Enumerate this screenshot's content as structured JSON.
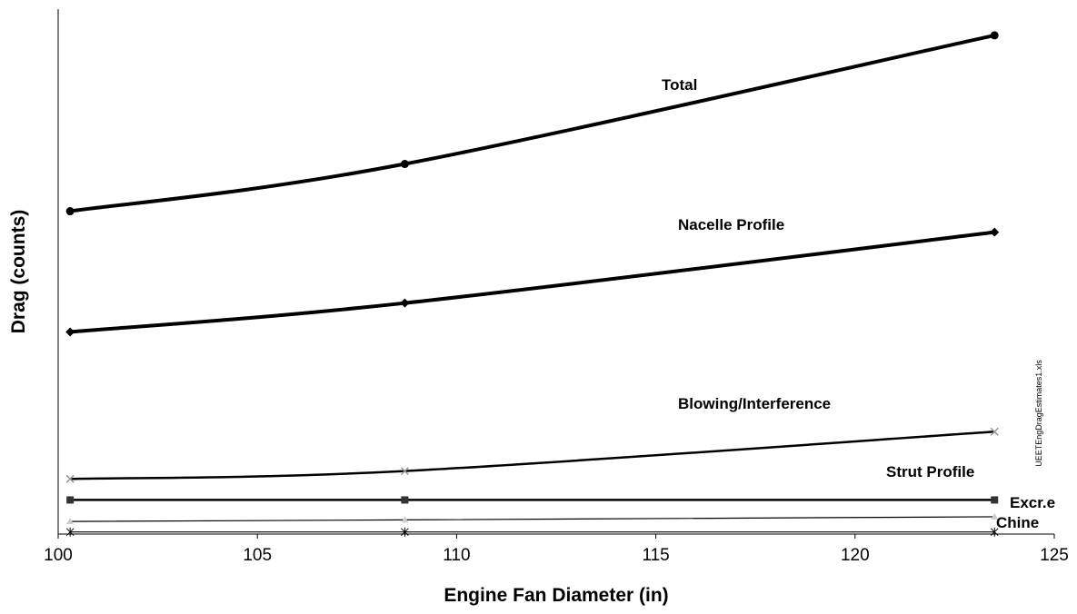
{
  "chart_data": {
    "type": "line",
    "xlabel": "Engine Fan Diameter (in)",
    "ylabel": "Drag (counts)",
    "xlim": [
      100,
      125
    ],
    "x_ticks": [
      "100",
      "105",
      "110",
      "115",
      "120",
      "125"
    ],
    "y_ticks_visible": false,
    "ylim": [
      0,
      100
    ],
    "grid": false,
    "legend": "none (series labeled directly on plot)",
    "x": [
      100.3,
      108.7,
      123.5
    ],
    "series": [
      {
        "name": "Total",
        "values": [
          61.5,
          70.5,
          95.0
        ],
        "color": "#000000",
        "marker": "circle",
        "line_weight": "heavy"
      },
      {
        "name": "Nacelle Profile",
        "values": [
          38.5,
          44.0,
          57.5
        ],
        "color": "#000000",
        "marker": "diamond",
        "line_weight": "heavy"
      },
      {
        "name": "Blowing/Interference",
        "values": [
          10.5,
          12.0,
          19.5
        ],
        "color": "#000000",
        "marker": "x",
        "line_weight": "medium"
      },
      {
        "name": "Strut Profile",
        "values": [
          6.5,
          6.5,
          6.5
        ],
        "color": "#000000",
        "marker": "square",
        "line_weight": "medium"
      },
      {
        "name": "Excr.e",
        "values": [
          2.4,
          2.7,
          3.3
        ],
        "color": "#000000",
        "marker": "triangle",
        "line_weight": "thin"
      },
      {
        "name": "Chine",
        "values": [
          0.4,
          0.4,
          0.4
        ],
        "color": "#000000",
        "marker": "asterisk",
        "line_weight": "thin"
      }
    ],
    "watermark": "UEETEngDragEstimates1.xls"
  }
}
